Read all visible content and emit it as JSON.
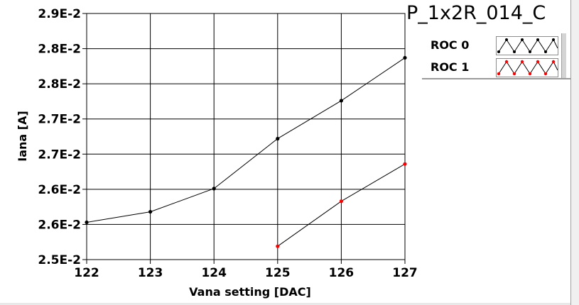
{
  "chart_title": "P_1x2R_014_C",
  "legend": [
    {
      "label": "ROC 0",
      "color": "#000000"
    },
    {
      "label": "ROC 1",
      "color": "#ff0000"
    }
  ],
  "chart_data": {
    "type": "line",
    "xlabel": "Vana setting [DAC]",
    "ylabel": "Iana [A]",
    "xlim": [
      122,
      127
    ],
    "ylim": [
      0.0255,
      0.029
    ],
    "x_ticks": [
      {
        "value": 122,
        "label": "122"
      },
      {
        "value": 123,
        "label": "123"
      },
      {
        "value": 124,
        "label": "124"
      },
      {
        "value": 125,
        "label": "125"
      },
      {
        "value": 126,
        "label": "126"
      },
      {
        "value": 127,
        "label": "127"
      }
    ],
    "y_ticks": [
      {
        "value": 0.0255,
        "label": "2.5E-2"
      },
      {
        "value": 0.026,
        "label": "2.6E-2"
      },
      {
        "value": 0.0265,
        "label": "2.6E-2"
      },
      {
        "value": 0.027,
        "label": "2.7E-2"
      },
      {
        "value": 0.0275,
        "label": "2.7E-2"
      },
      {
        "value": 0.028,
        "label": "2.8E-2"
      },
      {
        "value": 0.0285,
        "label": "2.8E-2"
      },
      {
        "value": 0.029,
        "label": "2.9E-2"
      }
    ],
    "grid": true,
    "legend_position": "top-right",
    "series": [
      {
        "name": "ROC 0",
        "color": "#000000",
        "x": [
          122,
          123,
          124,
          125,
          126,
          127
        ],
        "y": [
          0.02603,
          0.02618,
          0.02651,
          0.02722,
          0.02776,
          0.02837
        ]
      },
      {
        "name": "ROC 1",
        "color": "#ff0000",
        "x": [
          125,
          126,
          127
        ],
        "y": [
          0.02569,
          0.02633,
          0.02686
        ]
      }
    ]
  }
}
